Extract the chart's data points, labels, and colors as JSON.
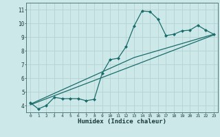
{
  "title": "",
  "xlabel": "Humidex (Indice chaleur)",
  "xlim": [
    -0.5,
    23.5
  ],
  "ylim": [
    3.5,
    11.5
  ],
  "xticks": [
    0,
    1,
    2,
    3,
    4,
    5,
    6,
    7,
    8,
    9,
    10,
    11,
    12,
    13,
    14,
    15,
    16,
    17,
    18,
    19,
    20,
    21,
    22,
    23
  ],
  "yticks": [
    4,
    5,
    6,
    7,
    8,
    9,
    10,
    11
  ],
  "bg_color": "#cce8e8",
  "grid_color": "#b8d4d4",
  "line_color": "#1a6b6b",
  "line1_x": [
    0,
    1,
    2,
    3,
    4,
    5,
    6,
    7,
    8,
    9,
    10,
    11,
    12,
    13,
    14,
    15,
    16,
    17,
    18,
    19,
    20,
    21,
    22,
    23
  ],
  "line1_y": [
    4.2,
    3.75,
    4.0,
    4.6,
    4.5,
    4.5,
    4.5,
    4.35,
    4.45,
    6.35,
    7.35,
    7.45,
    8.3,
    9.8,
    10.9,
    10.85,
    10.3,
    9.1,
    9.2,
    9.45,
    9.5,
    9.85,
    9.5,
    9.2
  ],
  "line2_x": [
    0,
    23
  ],
  "line2_y": [
    4.05,
    9.15
  ],
  "line3_x": [
    0,
    13,
    23
  ],
  "line3_y": [
    4.1,
    7.5,
    9.2
  ]
}
